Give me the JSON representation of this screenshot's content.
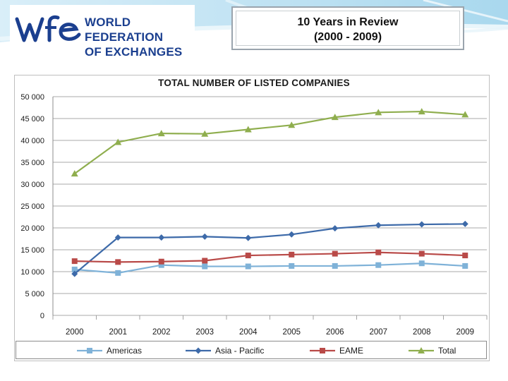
{
  "header": {
    "logo_line1": "WORLD FEDERATION",
    "logo_line2": "OF EXCHANGES",
    "review_line1": "10 Years in Review",
    "review_line2": "(2000 - 2009)"
  },
  "colors": {
    "americas": "#7fb2d8",
    "asia_pacific": "#3d6aa9",
    "eame": "#b94a48",
    "total": "#8fae4e",
    "logo_blue": "#1b3f8f"
  },
  "chart_data": {
    "type": "line",
    "title": "TOTAL NUMBER OF LISTED COMPANIES",
    "xlabel": "",
    "ylabel": "",
    "ylim": [
      0,
      50000
    ],
    "categories": [
      "2000",
      "2001",
      "2002",
      "2003",
      "2004",
      "2005",
      "2006",
      "2007",
      "2008",
      "2009"
    ],
    "y_ticks": [
      0,
      5000,
      10000,
      15000,
      20000,
      25000,
      30000,
      35000,
      40000,
      45000,
      50000
    ],
    "y_tick_labels": [
      "0",
      "5 000",
      "10 000",
      "15 000",
      "20 000",
      "25 000",
      "30 000",
      "35 000",
      "40 000",
      "45 000",
      "50 000"
    ],
    "series": [
      {
        "name": "Americas",
        "key": "americas",
        "marker": "square",
        "values": [
          10500,
          9700,
          11500,
          11200,
          11200,
          11300,
          11300,
          11500,
          11900,
          11300
        ]
      },
      {
        "name": "Asia - Pacific",
        "key": "asia_pacific",
        "marker": "diamond",
        "values": [
          9500,
          17800,
          17800,
          18000,
          17700,
          18500,
          19900,
          20600,
          20800,
          20900
        ]
      },
      {
        "name": "EAME",
        "key": "eame",
        "marker": "square",
        "values": [
          12400,
          12200,
          12300,
          12500,
          13700,
          13900,
          14100,
          14400,
          14100,
          13700
        ]
      },
      {
        "name": "Total",
        "key": "total",
        "marker": "triangle",
        "values": [
          32400,
          39600,
          41600,
          41500,
          42500,
          43500,
          45300,
          46400,
          46600,
          45900
        ]
      }
    ],
    "legend_position": "bottom"
  }
}
